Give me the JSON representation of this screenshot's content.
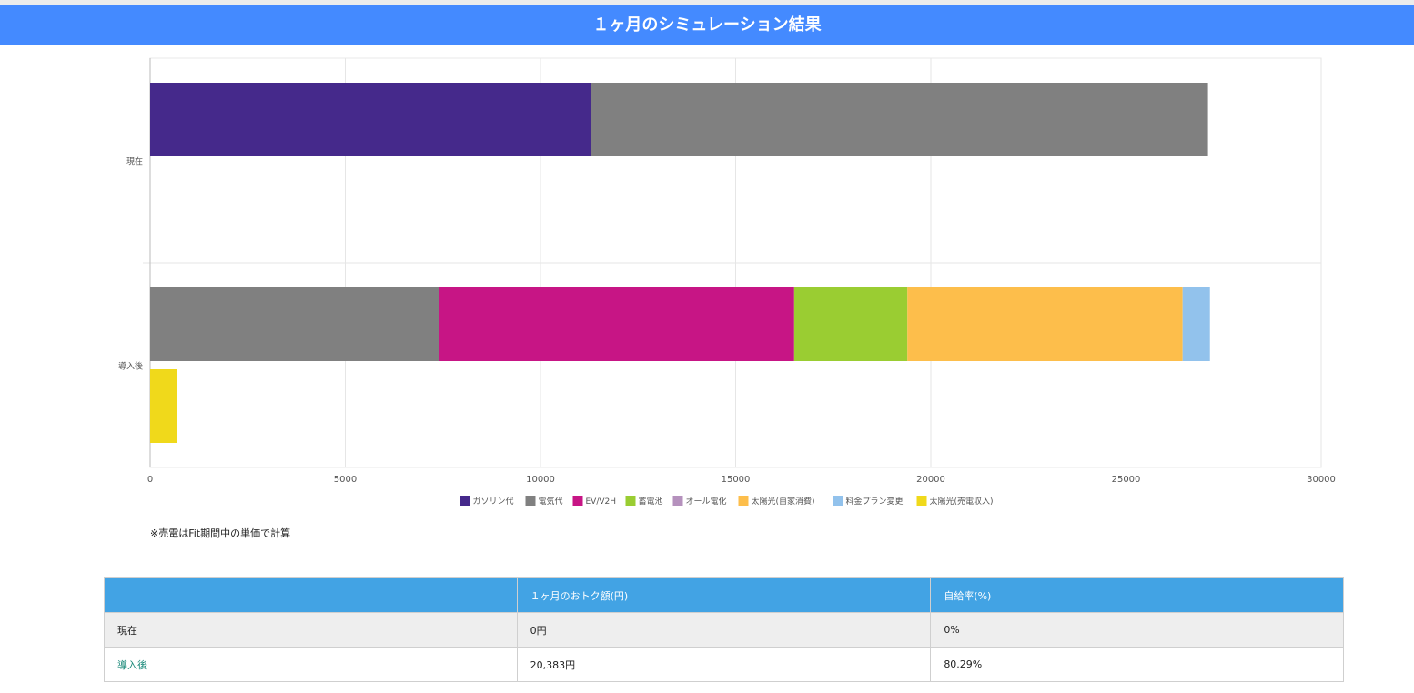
{
  "header": {
    "title": "１ヶ月のシミュレーション結果"
  },
  "chart_data": {
    "type": "bar",
    "orientation": "horizontal",
    "stacked": true,
    "categories": [
      "現在",
      "導入後"
    ],
    "xlim": [
      0,
      30000
    ],
    "xticks": [
      "0",
      "5000",
      "10000",
      "15000",
      "20000",
      "25000",
      "30000"
    ],
    "grid": true,
    "legend_position": "bottom",
    "series": [
      {
        "name": "ガソリン代",
        "color": "#45298b",
        "values": [
          11300,
          0
        ],
        "stack": "cost"
      },
      {
        "name": "電気代",
        "color": "#808080",
        "values": [
          15800,
          7400
        ],
        "stack": "cost"
      },
      {
        "name": "EV/V2H",
        "color": "#c71585",
        "values": [
          0,
          9100
        ],
        "stack": "cost"
      },
      {
        "name": "蓄電池",
        "color": "#9acd32",
        "values": [
          0,
          2900
        ],
        "stack": "cost"
      },
      {
        "name": "オール電化",
        "color": "#b591bd",
        "values": [
          0,
          0
        ],
        "stack": "cost"
      },
      {
        "name": "太陽光(自家消費)",
        "color": "#fdbe4b",
        "values": [
          0,
          7050
        ],
        "stack": "cost"
      },
      {
        "name": "料金プラン変更",
        "color": "#92c2ec",
        "values": [
          0,
          700
        ],
        "stack": "cost"
      },
      {
        "name": "太陽光(売電収入)",
        "color": "#f0d91b",
        "values": [
          0,
          680
        ],
        "stack": "income"
      }
    ]
  },
  "note": "※売電はFit期間中の単価で計算",
  "table": {
    "headers": [
      "",
      "１ヶ月のおトク額(円)",
      "自給率(%)"
    ],
    "rows": [
      {
        "label": "現在",
        "saving": "0円",
        "rate": "0%"
      },
      {
        "label": "導入後",
        "saving": "20,383円",
        "rate": "80.29%"
      }
    ]
  }
}
